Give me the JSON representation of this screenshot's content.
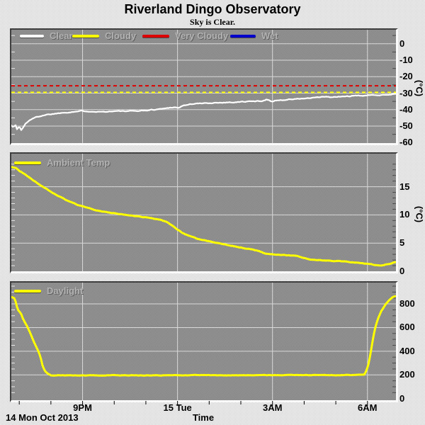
{
  "header": {
    "title": "Riverland Dingo Observatory",
    "status": "Sky is Clear."
  },
  "footer": {
    "date_label": "14 Mon Oct 2013",
    "axis_label": "Time"
  },
  "x_axis": {
    "lim": [
      18.75,
      30.9
    ],
    "ticks": [
      {
        "t": 21,
        "label": "9PM"
      },
      {
        "t": 24,
        "label": "15 Tue"
      },
      {
        "t": 27,
        "label": "3AM"
      },
      {
        "t": 30,
        "label": "6AM"
      }
    ],
    "minor_tick_every_hours": 1
  },
  "grid_color": "#d9d9d9",
  "chart_data": [
    {
      "type": "line",
      "name": "sky-conditions",
      "legend": [
        {
          "label": "Clear",
          "color": "#ffffff"
        },
        {
          "label": "Cloudy",
          "color": "#ffff00"
        },
        {
          "label": "Very Cloudy",
          "color": "#dd0000"
        },
        {
          "label": "Wet",
          "color": "#0000cc"
        }
      ],
      "ylim": [
        -60.3,
        8.5
      ],
      "yticks": [
        0,
        -10,
        -20,
        -30,
        -40,
        -50,
        -60
      ],
      "minor_tick_step": 5,
      "unit": "(°C)",
      "thresholds": [
        {
          "label": "Very Cloudy",
          "value": -25.5,
          "color": "#dd0000"
        },
        {
          "label": "Cloudy",
          "value": -29.5,
          "color": "#ffff00"
        }
      ],
      "series": [
        {
          "name": "Clear",
          "color": "#ffffff",
          "width": 2.2,
          "noise": 0.45,
          "points": [
            [
              18.75,
              -49.5
            ],
            [
              18.82,
              -50.5
            ],
            [
              18.88,
              -49.3
            ],
            [
              18.93,
              -52.0
            ],
            [
              19.0,
              -50.0
            ],
            [
              19.06,
              -52.5
            ],
            [
              19.12,
              -51.0
            ],
            [
              19.2,
              -48.5
            ],
            [
              19.35,
              -46.0
            ],
            [
              19.55,
              -44.5
            ],
            [
              19.8,
              -43.2
            ],
            [
              20.3,
              -42.0
            ],
            [
              21.0,
              -40.8
            ],
            [
              21.6,
              -41.3
            ],
            [
              22.0,
              -40.9
            ],
            [
              22.42,
              -41.0
            ],
            [
              23.0,
              -40.5
            ],
            [
              23.55,
              -39.4
            ],
            [
              23.9,
              -38.4
            ],
            [
              24.02,
              -39.1
            ],
            [
              24.15,
              -37.7
            ],
            [
              24.45,
              -36.5
            ],
            [
              24.9,
              -36.1
            ],
            [
              25.35,
              -35.7
            ],
            [
              25.8,
              -35.5
            ],
            [
              26.2,
              -35.1
            ],
            [
              26.65,
              -34.8
            ],
            [
              26.82,
              -33.7
            ],
            [
              26.97,
              -35.2
            ],
            [
              27.1,
              -34.4
            ],
            [
              27.4,
              -34.0
            ],
            [
              27.85,
              -33.4
            ],
            [
              28.3,
              -32.9
            ],
            [
              28.6,
              -32.2
            ],
            [
              28.9,
              -32.5
            ],
            [
              29.35,
              -31.9
            ],
            [
              29.8,
              -31.5
            ],
            [
              30.25,
              -31.1
            ],
            [
              30.7,
              -30.8
            ],
            [
              30.9,
              -30.4
            ]
          ]
        }
      ]
    },
    {
      "type": "line",
      "name": "ambient-temperature",
      "legend": [
        {
          "label": "Ambient Temp",
          "color": "#ffff00"
        }
      ],
      "ylim": [
        0,
        20.85
      ],
      "yticks": [
        15,
        10,
        5,
        0
      ],
      "minor_tick_step": 1,
      "unit": "(°C)",
      "thresholds": [],
      "series": [
        {
          "name": "Ambient Temp",
          "color": "#ffff00",
          "width": 3,
          "noise": 0.09,
          "points": [
            [
              18.75,
              18.5
            ],
            [
              18.86,
              18.4
            ],
            [
              18.95,
              18.1
            ],
            [
              19.0,
              17.8
            ],
            [
              19.15,
              17.3
            ],
            [
              19.36,
              16.4
            ],
            [
              19.58,
              15.6
            ],
            [
              19.88,
              14.5
            ],
            [
              20.18,
              13.5
            ],
            [
              20.48,
              12.7
            ],
            [
              20.78,
              11.9
            ],
            [
              21.08,
              11.4
            ],
            [
              21.52,
              10.7
            ],
            [
              21.97,
              10.3
            ],
            [
              22.42,
              10.0
            ],
            [
              22.64,
              9.8
            ],
            [
              23.09,
              9.5
            ],
            [
              23.46,
              9.1
            ],
            [
              23.69,
              8.7
            ],
            [
              23.91,
              7.8
            ],
            [
              24.13,
              6.9
            ],
            [
              24.36,
              6.3
            ],
            [
              24.66,
              5.7
            ],
            [
              25.1,
              5.2
            ],
            [
              25.55,
              4.7
            ],
            [
              26.0,
              4.2
            ],
            [
              26.45,
              3.75
            ],
            [
              26.82,
              3.1
            ],
            [
              27.27,
              2.9
            ],
            [
              27.71,
              2.8
            ],
            [
              28.16,
              2.15
            ],
            [
              28.61,
              1.95
            ],
            [
              29.06,
              1.8
            ],
            [
              29.5,
              1.65
            ],
            [
              29.95,
              1.35
            ],
            [
              30.4,
              1.0
            ],
            [
              30.7,
              1.3
            ],
            [
              30.9,
              1.65
            ]
          ]
        }
      ]
    },
    {
      "type": "line",
      "name": "daylight",
      "legend": [
        {
          "label": "Daylight",
          "color": "#ffff00"
        }
      ],
      "ylim": [
        -14,
        980
      ],
      "yticks": [
        800,
        600,
        400,
        200,
        0
      ],
      "minor_tick_step": 50,
      "unit": "",
      "thresholds": [],
      "series": [
        {
          "name": "Daylight",
          "color": "#ffff00",
          "width": 3,
          "noise": 3.5,
          "points": [
            [
              18.75,
              858
            ],
            [
              18.86,
              845
            ],
            [
              18.95,
              754
            ],
            [
              19.06,
              715
            ],
            [
              19.13,
              665
            ],
            [
              19.24,
              615
            ],
            [
              19.35,
              555
            ],
            [
              19.47,
              475
            ],
            [
              19.58,
              415
            ],
            [
              19.67,
              356
            ],
            [
              19.73,
              286
            ],
            [
              19.8,
              236
            ],
            [
              19.89,
              212
            ],
            [
              20.0,
              197
            ],
            [
              21,
              196
            ],
            [
              22,
              197
            ],
            [
              23,
              196
            ],
            [
              24,
              197
            ],
            [
              25,
              198
            ],
            [
              26,
              197
            ],
            [
              27,
              198
            ],
            [
              28,
              199
            ],
            [
              29,
              198
            ],
            [
              29.91,
              200
            ],
            [
              30.02,
              275
            ],
            [
              30.08,
              356
            ],
            [
              30.13,
              435
            ],
            [
              30.18,
              515
            ],
            [
              30.24,
              595
            ],
            [
              30.32,
              665
            ],
            [
              30.43,
              735
            ],
            [
              30.54,
              785
            ],
            [
              30.69,
              835
            ],
            [
              30.8,
              859
            ],
            [
              30.88,
              865
            ]
          ]
        }
      ]
    }
  ]
}
